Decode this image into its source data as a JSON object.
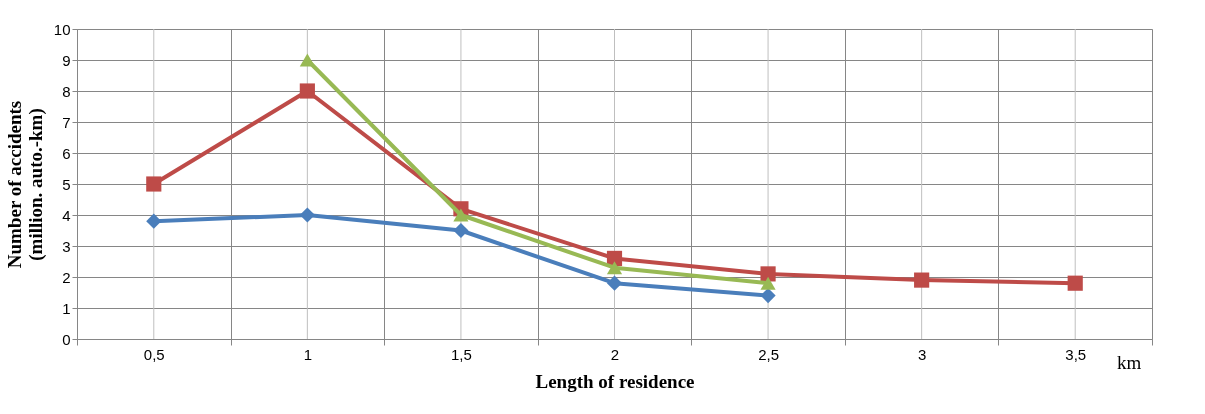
{
  "chart_data": {
    "type": "line",
    "xlabel": "Length of residence",
    "ylabel": "Number of accidents\n(million. auto.-km)",
    "categories": [
      "0,5",
      "1",
      "1,5",
      "2",
      "2,5",
      "3",
      "3,5"
    ],
    "series": [
      {
        "color": "#4a7ebb",
        "marker": "diamond",
        "values": [
          3.8,
          4.0,
          3.5,
          1.8,
          1.4,
          null,
          null
        ]
      },
      {
        "color": "#be4b48",
        "marker": "square",
        "values": [
          5.0,
          8.0,
          4.2,
          2.6,
          2.1,
          1.9,
          1.8
        ]
      },
      {
        "color": "#98b954",
        "marker": "triangle",
        "values": [
          null,
          9.0,
          4.0,
          2.3,
          1.8,
          null,
          null
        ]
      }
    ],
    "ylim": [
      0,
      10
    ],
    "yticks": [
      0,
      1,
      2,
      3,
      4,
      5,
      6,
      7,
      8,
      9,
      10
    ],
    "grid": true,
    "legend": false,
    "line_style": "solid",
    "annotations": [
      "km"
    ]
  }
}
